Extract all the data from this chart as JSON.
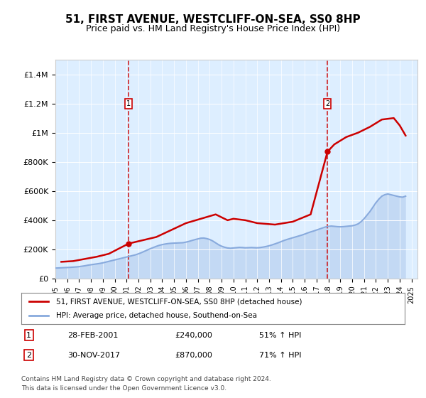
{
  "title": "51, FIRST AVENUE, WESTCLIFF-ON-SEA, SS0 8HP",
  "subtitle": "Price paid vs. HM Land Registry's House Price Index (HPI)",
  "title_fontsize": 11,
  "subtitle_fontsize": 9,
  "background_color": "#ffffff",
  "plot_bg_color": "#ddeeff",
  "xlim_left": 1995.0,
  "xlim_right": 2025.5,
  "ylim_bottom": 0,
  "ylim_top": 1500000,
  "yticks": [
    0,
    200000,
    400000,
    600000,
    800000,
    1000000,
    1200000,
    1400000
  ],
  "ytick_labels": [
    "£0",
    "£200K",
    "£400K",
    "£600K",
    "£800K",
    "£1M",
    "£1.2M",
    "£1.4M"
  ],
  "xtick_years": [
    1995,
    1996,
    1997,
    1998,
    1999,
    2000,
    2001,
    2002,
    2003,
    2004,
    2005,
    2006,
    2007,
    2008,
    2009,
    2010,
    2011,
    2012,
    2013,
    2014,
    2015,
    2016,
    2017,
    2018,
    2019,
    2020,
    2021,
    2022,
    2023,
    2024,
    2025
  ],
  "line_color_red": "#cc0000",
  "line_color_blue": "#88aadd",
  "marker1_date": "28-FEB-2001",
  "marker1_price": 240000,
  "marker1_hpi": "51%",
  "marker1_year": 2001.17,
  "marker2_date": "30-NOV-2017",
  "marker2_price": 870000,
  "marker2_hpi": "71%",
  "marker2_year": 2017.92,
  "legend_label_red": "51, FIRST AVENUE, WESTCLIFF-ON-SEA, SS0 8HP (detached house)",
  "legend_label_blue": "HPI: Average price, detached house, Southend-on-Sea",
  "footer1": "Contains HM Land Registry data © Crown copyright and database right 2024.",
  "footer2": "This data is licensed under the Open Government Licence v3.0.",
  "hpi_x": [
    1995.0,
    1995.25,
    1995.5,
    1995.75,
    1996.0,
    1996.25,
    1996.5,
    1996.75,
    1997.0,
    1997.25,
    1997.5,
    1997.75,
    1998.0,
    1998.25,
    1998.5,
    1998.75,
    1999.0,
    1999.25,
    1999.5,
    1999.75,
    2000.0,
    2000.25,
    2000.5,
    2000.75,
    2001.0,
    2001.25,
    2001.5,
    2001.75,
    2002.0,
    2002.25,
    2002.5,
    2002.75,
    2003.0,
    2003.25,
    2003.5,
    2003.75,
    2004.0,
    2004.25,
    2004.5,
    2004.75,
    2005.0,
    2005.25,
    2005.5,
    2005.75,
    2006.0,
    2006.25,
    2006.5,
    2006.75,
    2007.0,
    2007.25,
    2007.5,
    2007.75,
    2008.0,
    2008.25,
    2008.5,
    2008.75,
    2009.0,
    2009.25,
    2009.5,
    2009.75,
    2010.0,
    2010.25,
    2010.5,
    2010.75,
    2011.0,
    2011.25,
    2011.5,
    2011.75,
    2012.0,
    2012.25,
    2012.5,
    2012.75,
    2013.0,
    2013.25,
    2013.5,
    2013.75,
    2014.0,
    2014.25,
    2014.5,
    2014.75,
    2015.0,
    2015.25,
    2015.5,
    2015.75,
    2016.0,
    2016.25,
    2016.5,
    2016.75,
    2017.0,
    2017.25,
    2017.5,
    2017.75,
    2018.0,
    2018.25,
    2018.5,
    2018.75,
    2019.0,
    2019.25,
    2019.5,
    2019.75,
    2020.0,
    2020.25,
    2020.5,
    2020.75,
    2021.0,
    2021.25,
    2021.5,
    2021.75,
    2022.0,
    2022.25,
    2022.5,
    2022.75,
    2023.0,
    2023.25,
    2023.5,
    2023.75,
    2024.0,
    2024.25,
    2024.5
  ],
  "hpi_y": [
    72000,
    73000,
    74000,
    75000,
    76000,
    77000,
    78500,
    80000,
    82000,
    85000,
    88000,
    92000,
    95000,
    98000,
    101000,
    104000,
    108000,
    113000,
    118000,
    123000,
    128000,
    133000,
    138000,
    143000,
    148000,
    153000,
    158000,
    163000,
    170000,
    178000,
    187000,
    196000,
    205000,
    213000,
    221000,
    228000,
    233000,
    237000,
    240000,
    242000,
    243000,
    244000,
    245000,
    246000,
    250000,
    255000,
    261000,
    267000,
    272000,
    277000,
    278000,
    274000,
    268000,
    258000,
    245000,
    232000,
    222000,
    215000,
    210000,
    208000,
    210000,
    212000,
    214000,
    213000,
    211000,
    212000,
    213000,
    212000,
    211000,
    213000,
    216000,
    220000,
    225000,
    231000,
    238000,
    245000,
    253000,
    261000,
    268000,
    274000,
    280000,
    286000,
    292000,
    298000,
    305000,
    313000,
    320000,
    326000,
    333000,
    340000,
    347000,
    354000,
    358000,
    360000,
    358000,
    356000,
    355000,
    356000,
    358000,
    360000,
    362000,
    367000,
    375000,
    390000,
    410000,
    435000,
    460000,
    490000,
    520000,
    545000,
    565000,
    575000,
    580000,
    575000,
    570000,
    565000,
    560000,
    558000,
    565000
  ],
  "price_x": [
    1995.5,
    1996.5,
    1997.5,
    1998.5,
    1999.5,
    2001.17,
    2003.5,
    2006.0,
    2008.5,
    2009.5,
    2010.0,
    2011.0,
    2012.0,
    2013.5,
    2015.0,
    2016.5,
    2017.92,
    2018.5,
    2019.5,
    2020.5,
    2021.5,
    2022.5,
    2023.5,
    2024.0,
    2024.5
  ],
  "price_y": [
    115000,
    120000,
    135000,
    150000,
    170000,
    240000,
    285000,
    380000,
    440000,
    400000,
    410000,
    400000,
    380000,
    370000,
    390000,
    440000,
    870000,
    920000,
    970000,
    1000000,
    1040000,
    1090000,
    1100000,
    1050000,
    980000
  ]
}
